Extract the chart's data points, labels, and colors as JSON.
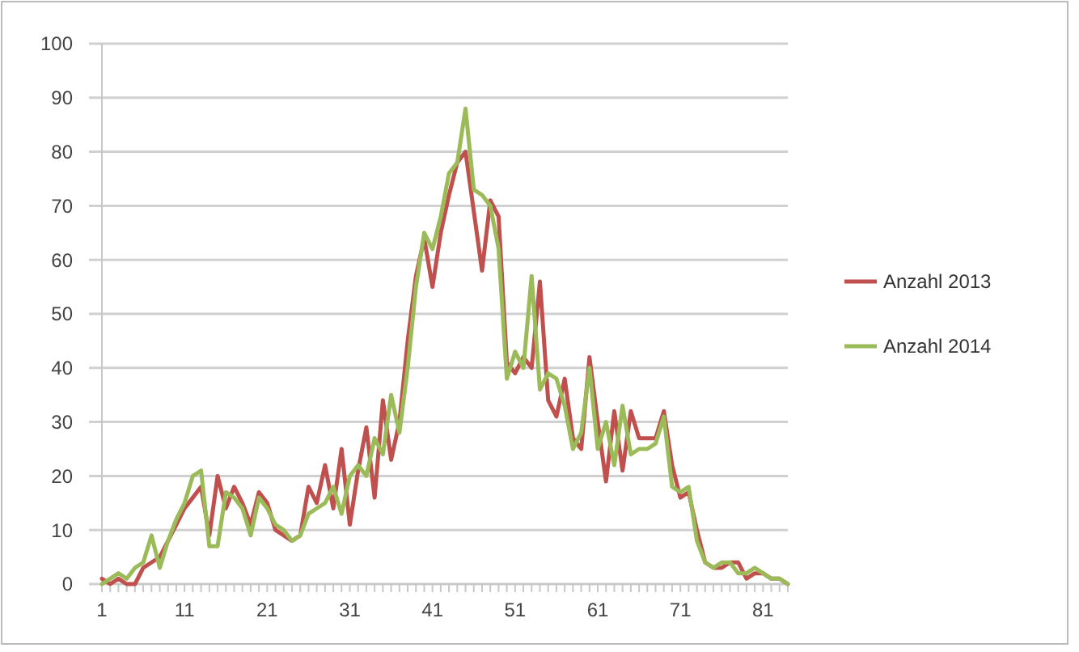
{
  "chart_data": {
    "type": "line",
    "categories": [
      "1",
      null,
      null,
      null,
      null,
      null,
      null,
      null,
      null,
      null,
      "11",
      null,
      null,
      null,
      null,
      null,
      null,
      null,
      null,
      null,
      "21",
      null,
      null,
      null,
      null,
      null,
      null,
      null,
      null,
      null,
      "31",
      null,
      null,
      null,
      null,
      null,
      null,
      null,
      null,
      null,
      "41",
      null,
      null,
      null,
      null,
      null,
      null,
      null,
      null,
      null,
      "51",
      null,
      null,
      null,
      null,
      null,
      null,
      null,
      null,
      null,
      "61",
      null,
      null,
      null,
      null,
      null,
      null,
      null,
      null,
      null,
      "71",
      null,
      null,
      null,
      null,
      null,
      null,
      null,
      null,
      null,
      "81",
      null,
      null,
      null
    ],
    "series": [
      {
        "name": "Anzahl 2013",
        "color": "#c0504d",
        "values": [
          1,
          0,
          1,
          0,
          0,
          3,
          4,
          5,
          8,
          11,
          14,
          16,
          18,
          9,
          20,
          14,
          18,
          15,
          11,
          17,
          15,
          10,
          9,
          8,
          9,
          18,
          15,
          22,
          14,
          25,
          11,
          21,
          29,
          16,
          34,
          23,
          30,
          45,
          57,
          64,
          55,
          65,
          72,
          78,
          80,
          69,
          58,
          71,
          68,
          41,
          39,
          42,
          40,
          56,
          34,
          31,
          38,
          27,
          25,
          42,
          30,
          19,
          32,
          21,
          32,
          27,
          27,
          27,
          32,
          22,
          16,
          17,
          10,
          4,
          3,
          3,
          4,
          4,
          1,
          2,
          2,
          1,
          1,
          0
        ]
      },
      {
        "name": "Anzahl 2014",
        "color": "#9bbb59",
        "values": [
          0,
          1,
          2,
          1,
          3,
          4,
          9,
          3,
          8,
          12,
          15,
          20,
          21,
          7,
          7,
          17,
          16,
          14,
          9,
          16,
          14,
          11,
          10,
          8,
          9,
          13,
          14,
          15,
          18,
          13,
          20,
          22,
          20,
          27,
          24,
          35,
          28,
          40,
          55,
          65,
          62,
          68,
          76,
          78,
          88,
          73,
          72,
          70,
          62,
          38,
          43,
          40,
          57,
          36,
          39,
          38,
          33,
          25,
          28,
          40,
          25,
          30,
          22,
          33,
          24,
          25,
          25,
          26,
          31,
          18,
          17,
          18,
          8,
          4,
          3,
          4,
          4,
          2,
          2,
          3,
          2,
          1,
          1,
          0
        ]
      }
    ],
    "ylim": [
      0,
      100
    ],
    "yticks": [
      0,
      10,
      20,
      30,
      40,
      50,
      60,
      70,
      80,
      90,
      100
    ],
    "grid": "y",
    "legend": "right"
  }
}
